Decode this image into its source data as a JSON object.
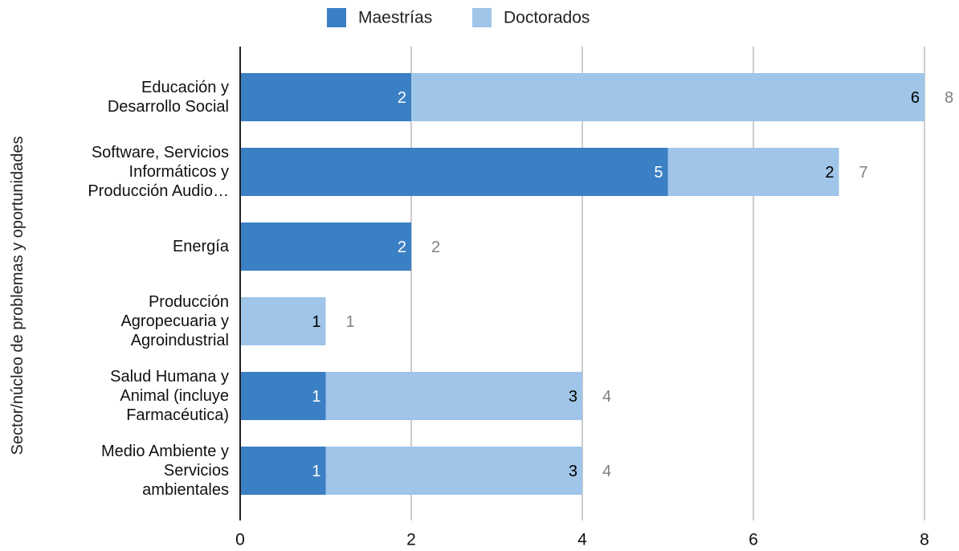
{
  "chart_data": {
    "type": "bar",
    "orientation": "horizontal",
    "stacked": true,
    "title": "",
    "xlabel": "",
    "ylabel": "Sector/núcleo de problemas y oportunidades",
    "xlim": [
      0,
      8
    ],
    "xticks": [
      "0",
      "2",
      "4",
      "6",
      "8"
    ],
    "grid": "vertical",
    "legend_position": "top",
    "categories": [
      [
        "Educación y",
        "Desarrollo Social"
      ],
      [
        "Software, Servicios",
        "Informáticos y",
        "Producción Audio…"
      ],
      [
        "Energía"
      ],
      [
        "Producción",
        "Agropecuaria y",
        "Agroindustrial"
      ],
      [
        "Salud Humana y",
        "Animal (incluye",
        "Farmacéutica)"
      ],
      [
        "Medio Ambiente y",
        "Servicios",
        "ambientales"
      ]
    ],
    "series": [
      {
        "name": "Maestrías",
        "color": "#3b7fc4",
        "label_color": "#ffffff",
        "values": [
          2,
          5,
          2,
          0,
          1,
          1
        ]
      },
      {
        "name": "Doctorados",
        "color": "#9fc5e8",
        "label_color": "#000000",
        "values": [
          6,
          2,
          0,
          1,
          3,
          3
        ]
      }
    ],
    "totals": [
      8,
      7,
      2,
      1,
      4,
      4
    ],
    "total_label_color": "#808080"
  }
}
